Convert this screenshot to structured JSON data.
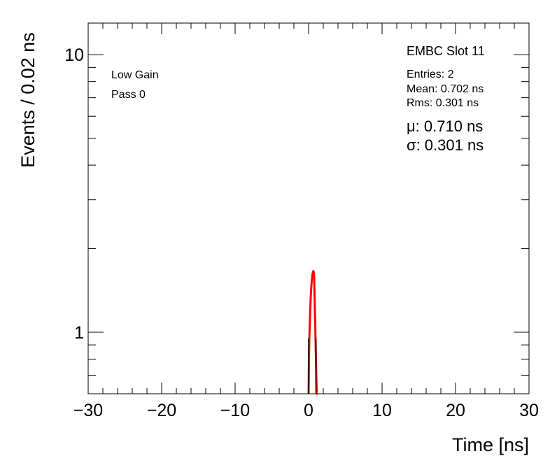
{
  "chart_data": {
    "type": "line",
    "xlabel": "Time [ns]",
    "ylabel": "Events / 0.02 ns",
    "xlim": [
      -30,
      30
    ],
    "ylim": [
      0.6,
      13
    ],
    "yscale": "log",
    "xticks": [
      -30,
      -20,
      -10,
      0,
      10,
      20,
      30
    ],
    "xtick_labels": [
      "−30",
      "−20",
      "−10",
      "0",
      "10",
      "20",
      "30"
    ],
    "yticks": [
      1,
      10
    ],
    "ytick_labels": [
      "1",
      "10"
    ],
    "grid": false,
    "series": [
      {
        "color": "#ff0000",
        "x": [
          0.0,
          0.05,
          0.1,
          0.2,
          0.3,
          0.4,
          0.5,
          0.6,
          0.65,
          0.7,
          0.75,
          0.8,
          0.9,
          1.0,
          1.1,
          1.2,
          1.25
        ],
        "y": [
          0.6,
          0.8,
          0.95,
          1.15,
          1.35,
          1.5,
          1.6,
          1.65,
          1.66,
          1.65,
          1.6,
          1.4,
          1.1,
          0.8,
          0.6,
          0.6,
          0.6
        ]
      }
    ]
  },
  "labels": {
    "gain": "Low Gain",
    "pass": "Pass 0",
    "slot": "EMBC Slot 11",
    "entries": "Entries: 2",
    "mean": "Mean: 0.702 ns",
    "rms": "Rms: 0.301 ns",
    "mu": "μ: 0.710 ns",
    "sigma": "σ: 0.301 ns"
  }
}
